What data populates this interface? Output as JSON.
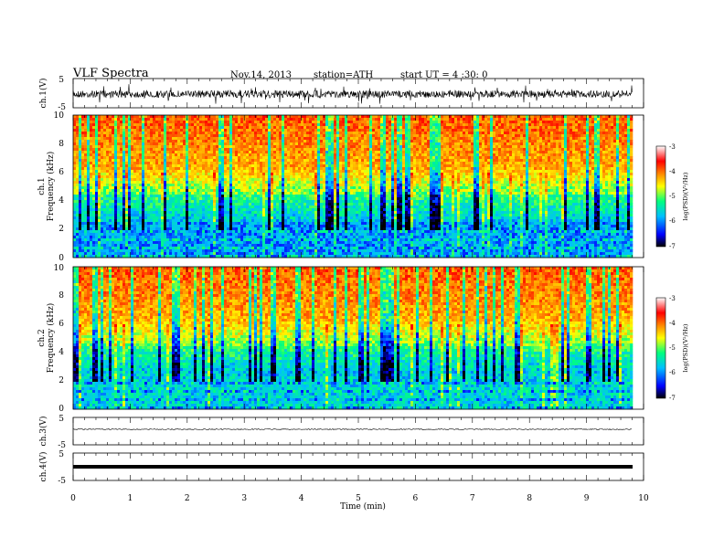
{
  "header": {
    "title": "VLF  Spectra",
    "date": "Nov.14, 2013",
    "station": "station=ATH",
    "start": "start  UT  =   4  :30: 0"
  },
  "chart_data": [
    {
      "type": "line",
      "panel": "ch1-waveform",
      "ylabel": "ch.1(V)",
      "yticks": [
        "5",
        "-5"
      ],
      "ylim": [
        -5,
        5
      ],
      "xlim": [
        0,
        10
      ],
      "data_end_min": 9.8,
      "trace": "dense noisy waveform around 0 V, amplitude ~±1.5 V"
    },
    {
      "type": "heatmap",
      "panel": "ch1-spectrogram",
      "ylabel_line1": "ch.1",
      "ylabel_line2": "Frequency  (kHz)",
      "yticks": [
        "10",
        "8",
        "6",
        "4",
        "2",
        "0"
      ],
      "ylim": [
        0,
        10
      ],
      "xlim": [
        0,
        10
      ],
      "colorbar": {
        "label": "log(PSD)(V²/Hz)",
        "ticks": [
          "-3",
          "-4",
          "-5",
          "-6",
          "-7"
        ],
        "range": [
          -7,
          -3
        ]
      }
    },
    {
      "type": "heatmap",
      "panel": "ch2-spectrogram",
      "ylabel_line1": "ch.2",
      "ylabel_line2": "Frequency  (kHz)",
      "yticks": [
        "10",
        "8",
        "6",
        "4",
        "2",
        "0"
      ],
      "ylim": [
        0,
        10
      ],
      "xlim": [
        0,
        10
      ],
      "colorbar": {
        "label": "log(PSD)(V²/Hz)",
        "ticks": [
          "-3",
          "-4",
          "-5",
          "-6",
          "-7"
        ],
        "range": [
          -7,
          -3
        ]
      }
    },
    {
      "type": "line",
      "panel": "ch3-waveform",
      "ylabel": "ch.3(V)",
      "yticks": [
        "5",
        "-5"
      ],
      "ylim": [
        -5,
        5
      ],
      "xlim": [
        0,
        10
      ],
      "trace": "nearly flat line at ~0 V"
    },
    {
      "type": "line",
      "panel": "ch4-waveform",
      "ylabel": "ch.4(V)",
      "yticks": [
        "5",
        "-5"
      ],
      "ylim": [
        -5,
        5
      ],
      "xlim": [
        0,
        10
      ],
      "trace": "thick flat line at ~0 V"
    }
  ],
  "xaxis": {
    "label": "Time  (min)",
    "ticks": [
      "0",
      "1",
      "2",
      "3",
      "4",
      "5",
      "6",
      "7",
      "8",
      "9",
      "10"
    ]
  },
  "colors": {
    "colormap": [
      "#000000",
      "#0000ff",
      "#00bfff",
      "#00ff7f",
      "#ffff00",
      "#ff8c00",
      "#ff0000",
      "#ffffff"
    ]
  }
}
